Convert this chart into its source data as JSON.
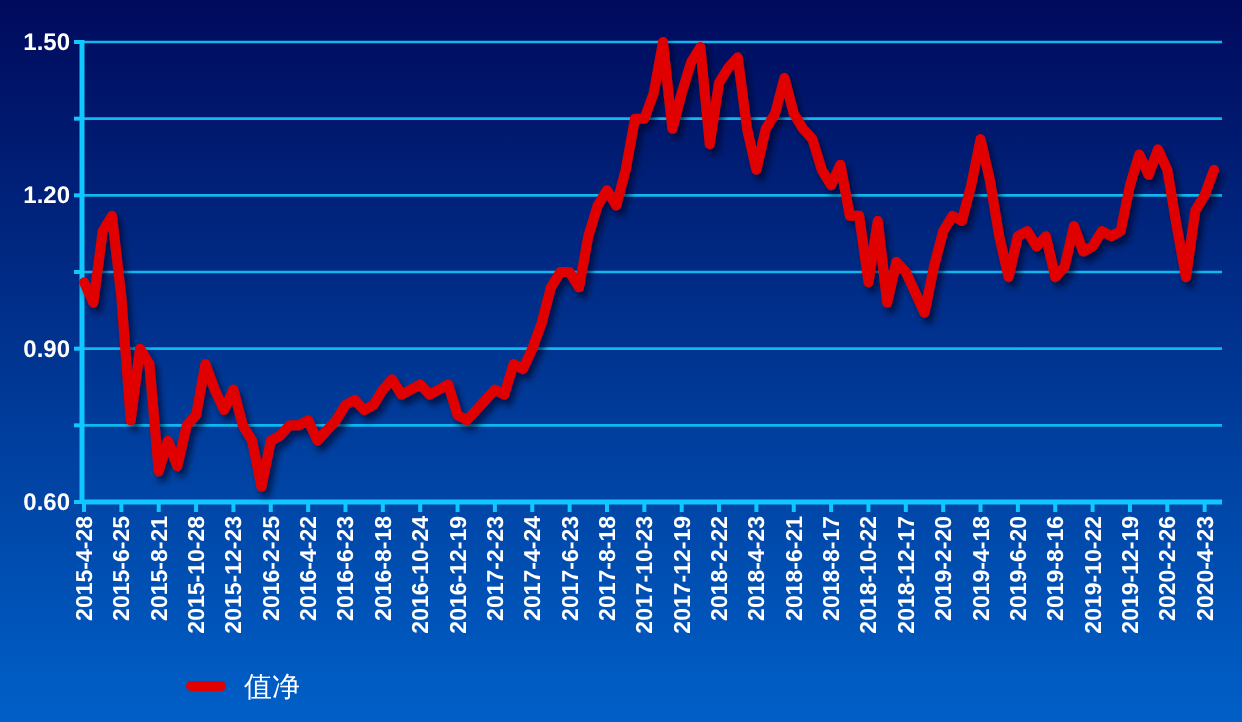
{
  "chart_data": {
    "type": "line",
    "categories": [
      "2015-4-28",
      null,
      null,
      null,
      "2015-6-25",
      null,
      null,
      null,
      "2015-8-21",
      null,
      null,
      null,
      "2015-10-28",
      null,
      null,
      null,
      "2015-12-23",
      null,
      null,
      null,
      "2016-2-25",
      null,
      null,
      null,
      "2016-4-22",
      null,
      null,
      null,
      "2016-6-23",
      null,
      null,
      null,
      "2016-8-18",
      null,
      null,
      null,
      "2016-10-24",
      null,
      null,
      null,
      "2016-12-19",
      null,
      null,
      null,
      "2017-2-23",
      null,
      null,
      null,
      "2017-4-24",
      null,
      null,
      null,
      "2017-6-23",
      null,
      null,
      null,
      "2017-8-18",
      null,
      null,
      null,
      "2017-10-23",
      null,
      null,
      null,
      "2017-12-19",
      null,
      null,
      null,
      "2018-2-22",
      null,
      null,
      null,
      "2018-4-23",
      null,
      null,
      null,
      "2018-6-21",
      null,
      null,
      null,
      "2018-8-17",
      null,
      null,
      null,
      "2018-10-22",
      null,
      null,
      null,
      "2018-12-17",
      null,
      null,
      null,
      "2019-2-20",
      null,
      null,
      null,
      "2019-4-18",
      null,
      null,
      null,
      "2019-6-20",
      null,
      null,
      null,
      "2019-8-16",
      null,
      null,
      null,
      "2019-10-22",
      null,
      null,
      null,
      "2019-12-19",
      null,
      null,
      null,
      "2020-2-26",
      null,
      null,
      null,
      "2020-4-23",
      null
    ],
    "series": [
      {
        "name": "值净",
        "color": "#e00000",
        "values": [
          1.03,
          0.99,
          1.13,
          1.16,
          1.0,
          0.76,
          0.9,
          0.87,
          0.66,
          0.72,
          0.67,
          0.75,
          0.77,
          0.87,
          0.82,
          0.78,
          0.82,
          0.75,
          0.72,
          0.63,
          0.72,
          0.73,
          0.75,
          0.75,
          0.76,
          0.72,
          0.74,
          0.76,
          0.79,
          0.8,
          0.78,
          0.79,
          0.82,
          0.84,
          0.81,
          0.82,
          0.83,
          0.81,
          0.82,
          0.83,
          0.77,
          0.76,
          0.78,
          0.8,
          0.82,
          0.81,
          0.87,
          0.86,
          0.9,
          0.95,
          1.02,
          1.05,
          1.05,
          1.02,
          1.12,
          1.18,
          1.21,
          1.18,
          1.25,
          1.35,
          1.35,
          1.4,
          1.5,
          1.33,
          1.4,
          1.46,
          1.49,
          1.3,
          1.42,
          1.45,
          1.47,
          1.33,
          1.25,
          1.33,
          1.36,
          1.43,
          1.36,
          1.33,
          1.31,
          1.25,
          1.22,
          1.26,
          1.16,
          1.16,
          1.03,
          1.15,
          0.99,
          1.07,
          1.05,
          1.01,
          0.97,
          1.06,
          1.13,
          1.16,
          1.15,
          1.22,
          1.31,
          1.23,
          1.12,
          1.04,
          1.12,
          1.13,
          1.1,
          1.12,
          1.04,
          1.06,
          1.14,
          1.09,
          1.1,
          1.13,
          1.12,
          1.13,
          1.22,
          1.28,
          1.24,
          1.29,
          1.25,
          1.14,
          1.04,
          1.17,
          1.2,
          1.25
        ]
      }
    ],
    "ylim": [
      0.6,
      1.5
    ],
    "yticks": [
      {
        "value": 0.6,
        "label": "0.60"
      },
      {
        "value": 0.75,
        "label": null
      },
      {
        "value": 0.9,
        "label": "0.90"
      },
      {
        "value": 1.05,
        "label": null
      },
      {
        "value": 1.2,
        "label": "1.20"
      },
      {
        "value": 1.35,
        "label": null
      },
      {
        "value": 1.5,
        "label": "1.50"
      }
    ],
    "grid": "y",
    "legend": "bottom left"
  }
}
